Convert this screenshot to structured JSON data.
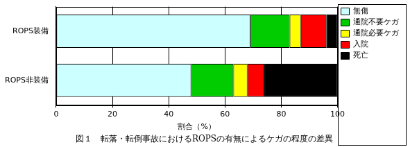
{
  "chart_data": {
    "type": "bar",
    "title": "図１　転落・転倒事故におけるROPSの有無によるケガの程度の差異",
    "xlabel": "割合（%）",
    "categories": [
      "ROPS装備",
      "ROPS非装備"
    ],
    "series": [
      {
        "name": "無傷",
        "color": "#ccffff",
        "values": [
          69,
          48
        ]
      },
      {
        "name": "通院不要ケガ",
        "color": "#00cc00",
        "values": [
          14,
          15
        ]
      },
      {
        "name": "通院必要ケガ",
        "color": "#ffff00",
        "values": [
          4,
          5
        ]
      },
      {
        "name": "入院",
        "color": "#ff0000",
        "values": [
          9,
          6
        ]
      },
      {
        "name": "死亡",
        "color": "#000000",
        "values": [
          4,
          26
        ]
      }
    ],
    "xlim": [
      0,
      100
    ],
    "xticks": [
      0,
      20,
      40,
      60,
      80,
      100
    ],
    "orientation": "horizontal",
    "stacked": true,
    "grid": true,
    "legend": "right"
  }
}
